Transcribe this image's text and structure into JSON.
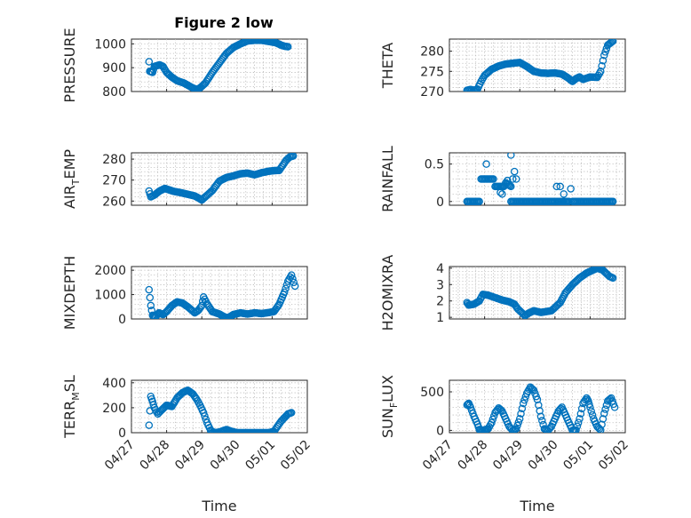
{
  "figure_title": "Figure 2 low",
  "chart_data": [
    {
      "id": "pressure",
      "type": "scatter",
      "ylabel": {
        "base": "PRESSURE",
        "sub": "",
        "rest": ""
      },
      "ylim": [
        800,
        1020
      ],
      "yticks": [
        800,
        900,
        1000
      ],
      "grid": true,
      "xlim": [
        0,
        5
      ],
      "xticklabels": [],
      "xlabel": "",
      "keypoints": [
        [
          0.5,
          925
        ],
        [
          0.52,
          885
        ],
        [
          0.6,
          880
        ],
        [
          0.65,
          905
        ],
        [
          0.8,
          912
        ],
        [
          0.9,
          905
        ],
        [
          1.0,
          880
        ],
        [
          1.15,
          860
        ],
        [
          1.3,
          845
        ],
        [
          1.5,
          835
        ],
        [
          1.7,
          818
        ],
        [
          1.85,
          808
        ],
        [
          1.95,
          815
        ],
        [
          2.1,
          835
        ],
        [
          2.3,
          880
        ],
        [
          2.5,
          920
        ],
        [
          2.7,
          960
        ],
        [
          2.9,
          985
        ],
        [
          3.1,
          1000
        ],
        [
          3.3,
          1012
        ],
        [
          3.5,
          1015
        ],
        [
          3.7,
          1015
        ],
        [
          3.9,
          1010
        ],
        [
          4.1,
          1005
        ],
        [
          4.25,
          995
        ],
        [
          4.35,
          990
        ],
        [
          4.45,
          988
        ]
      ]
    },
    {
      "id": "theta",
      "type": "scatter",
      "ylabel": {
        "base": "THETA",
        "sub": "",
        "rest": ""
      },
      "ylim": [
        270,
        283
      ],
      "yticks": [
        270,
        275,
        280
      ],
      "grid": true,
      "xlim": [
        0,
        5
      ],
      "xticklabels": [],
      "xlabel": "",
      "keypoints": [
        [
          0.5,
          270.3
        ],
        [
          0.6,
          270.5
        ],
        [
          0.7,
          270.3
        ],
        [
          0.8,
          270.6
        ],
        [
          0.9,
          272.5
        ],
        [
          1.0,
          274
        ],
        [
          1.2,
          275.5
        ],
        [
          1.4,
          276.3
        ],
        [
          1.6,
          276.8
        ],
        [
          1.8,
          277
        ],
        [
          2.0,
          277.2
        ],
        [
          2.2,
          276.2
        ],
        [
          2.4,
          275
        ],
        [
          2.6,
          274.6
        ],
        [
          2.8,
          274.5
        ],
        [
          3.0,
          274.6
        ],
        [
          3.2,
          274.3
        ],
        [
          3.35,
          273.5
        ],
        [
          3.5,
          272.5
        ],
        [
          3.6,
          273.2
        ],
        [
          3.7,
          273.6
        ],
        [
          3.8,
          273
        ],
        [
          4.0,
          273.6
        ],
        [
          4.2,
          273.5
        ],
        [
          4.3,
          275
        ],
        [
          4.4,
          279
        ],
        [
          4.5,
          281.5
        ],
        [
          4.65,
          282.5
        ]
      ]
    },
    {
      "id": "air_temp",
      "type": "scatter",
      "ylabel": {
        "base": "AIR",
        "sub": "T",
        "rest": "EMP"
      },
      "ylim": [
        258,
        283
      ],
      "yticks": [
        260,
        270,
        280
      ],
      "grid": true,
      "xlim": [
        0,
        5
      ],
      "xticklabels": [],
      "xlabel": "",
      "keypoints": [
        [
          0.5,
          264.8
        ],
        [
          0.55,
          262
        ],
        [
          0.65,
          262.8
        ],
        [
          0.8,
          264.8
        ],
        [
          0.95,
          266
        ],
        [
          1.2,
          264.6
        ],
        [
          1.4,
          264
        ],
        [
          1.6,
          263.2
        ],
        [
          1.8,
          262.4
        ],
        [
          1.9,
          261.5
        ],
        [
          2.0,
          260.5
        ],
        [
          2.1,
          262
        ],
        [
          2.3,
          265
        ],
        [
          2.5,
          269.5
        ],
        [
          2.7,
          271.2
        ],
        [
          2.9,
          272
        ],
        [
          3.1,
          273
        ],
        [
          3.3,
          273.3
        ],
        [
          3.5,
          272.5
        ],
        [
          3.7,
          273.5
        ],
        [
          3.9,
          274.2
        ],
        [
          4.05,
          274.5
        ],
        [
          4.2,
          274.6
        ],
        [
          4.3,
          277
        ],
        [
          4.4,
          279.5
        ],
        [
          4.5,
          281
        ],
        [
          4.6,
          281.5
        ]
      ]
    },
    {
      "id": "rainfall",
      "type": "scatter",
      "ylabel": {
        "base": "RAINFALL",
        "sub": "",
        "rest": ""
      },
      "ylim": [
        -0.05,
        0.65
      ],
      "yticks": [
        0,
        0.5
      ],
      "grid": true,
      "xlim": [
        0,
        5
      ],
      "xticklabels": [],
      "xlabel": "",
      "segments": [
        [
          [
            0.5,
            0
          ],
          [
            0.85,
            0
          ]
        ],
        [
          [
            0.9,
            0.3
          ],
          [
            1.25,
            0.3
          ]
        ],
        [
          [
            1.3,
            0.2
          ],
          [
            1.55,
            0.2
          ]
        ],
        [
          [
            1.6,
            0.25
          ],
          [
            1.75,
            0.2
          ]
        ],
        [
          [
            1.75,
            0
          ],
          [
            3.0,
            0
          ]
        ],
        [
          [
            3.05,
            0
          ],
          [
            3.4,
            0
          ]
        ],
        [
          [
            3.5,
            0
          ],
          [
            4.65,
            0
          ]
        ]
      ],
      "extra_points": [
        [
          1.05,
          0.5
        ],
        [
          1.45,
          0.12
        ],
        [
          1.5,
          0.1
        ],
        [
          1.75,
          0.62
        ],
        [
          1.8,
          0.3
        ],
        [
          1.85,
          0.4
        ],
        [
          1.9,
          0.3
        ],
        [
          1.65,
          0.28
        ],
        [
          3.05,
          0.2
        ],
        [
          3.15,
          0.2
        ],
        [
          3.25,
          0.1
        ],
        [
          3.45,
          0.17
        ]
      ]
    },
    {
      "id": "mixdepth",
      "type": "scatter",
      "ylabel": {
        "base": "MIXDEPTH",
        "sub": "",
        "rest": ""
      },
      "ylim": [
        0,
        2150
      ],
      "yticks": [
        0,
        1000,
        2000
      ],
      "grid": true,
      "xlim": [
        0,
        5
      ],
      "xticklabels": [],
      "xlabel": "",
      "keypoints": [
        [
          0.5,
          1200
        ],
        [
          0.55,
          550
        ],
        [
          0.6,
          150
        ],
        [
          0.68,
          80
        ],
        [
          0.78,
          250
        ],
        [
          0.9,
          180
        ],
        [
          1.0,
          300
        ],
        [
          1.15,
          550
        ],
        [
          1.3,
          700
        ],
        [
          1.45,
          650
        ],
        [
          1.6,
          500
        ],
        [
          1.7,
          380
        ],
        [
          1.8,
          250
        ],
        [
          1.9,
          350
        ],
        [
          2.0,
          550
        ],
        [
          2.05,
          900
        ],
        [
          2.15,
          620
        ],
        [
          2.3,
          300
        ],
        [
          2.5,
          200
        ],
        [
          2.65,
          80
        ],
        [
          2.75,
          50
        ],
        [
          2.9,
          180
        ],
        [
          3.1,
          250
        ],
        [
          3.3,
          200
        ],
        [
          3.5,
          250
        ],
        [
          3.7,
          220
        ],
        [
          3.9,
          260
        ],
        [
          4.05,
          300
        ],
        [
          4.2,
          600
        ],
        [
          4.35,
          1100
        ],
        [
          4.45,
          1550
        ],
        [
          4.55,
          1800
        ],
        [
          4.65,
          1350
        ]
      ]
    },
    {
      "id": "h2omixra",
      "type": "scatter",
      "ylabel": {
        "base": "H2OMIXRA",
        "sub": "",
        "rest": ""
      },
      "ylim": [
        0.9,
        4.1
      ],
      "yticks": [
        1,
        2,
        3,
        4
      ],
      "grid": true,
      "xlim": [
        0,
        5
      ],
      "xticklabels": [],
      "xlabel": "",
      "keypoints": [
        [
          0.5,
          1.9
        ],
        [
          0.55,
          1.75
        ],
        [
          0.7,
          1.8
        ],
        [
          0.85,
          2.0
        ],
        [
          0.95,
          2.4
        ],
        [
          1.1,
          2.35
        ],
        [
          1.3,
          2.2
        ],
        [
          1.5,
          2.05
        ],
        [
          1.7,
          1.95
        ],
        [
          1.85,
          1.8
        ],
        [
          1.95,
          1.5
        ],
        [
          2.05,
          1.3
        ],
        [
          2.15,
          1.1
        ],
        [
          2.25,
          1.25
        ],
        [
          2.4,
          1.4
        ],
        [
          2.6,
          1.3
        ],
        [
          2.75,
          1.35
        ],
        [
          2.9,
          1.4
        ],
        [
          3.0,
          1.6
        ],
        [
          3.15,
          1.9
        ],
        [
          3.3,
          2.5
        ],
        [
          3.5,
          3.0
        ],
        [
          3.7,
          3.4
        ],
        [
          3.9,
          3.7
        ],
        [
          4.05,
          3.85
        ],
        [
          4.2,
          4.0
        ],
        [
          4.35,
          3.9
        ],
        [
          4.45,
          3.7
        ],
        [
          4.55,
          3.5
        ],
        [
          4.65,
          3.4
        ]
      ]
    },
    {
      "id": "terr_msl",
      "type": "scatter",
      "ylabel": {
        "base": "TERR",
        "sub": "M",
        "rest": "SL"
      },
      "ylim": [
        0,
        420
      ],
      "yticks": [
        0,
        200,
        400
      ],
      "grid": true,
      "xlim": [
        0,
        5
      ],
      "xticklabels": [
        "04/27",
        "04/28",
        "04/29",
        "04/30",
        "05/01",
        "05/02"
      ],
      "xlabel": "Time",
      "keypoints": [
        [
          0.5,
          60
        ],
        [
          0.55,
          290
        ],
        [
          0.6,
          250
        ],
        [
          0.65,
          200
        ],
        [
          0.75,
          150
        ],
        [
          0.85,
          180
        ],
        [
          1.0,
          220
        ],
        [
          1.15,
          210
        ],
        [
          1.3,
          280
        ],
        [
          1.45,
          320
        ],
        [
          1.6,
          340
        ],
        [
          1.75,
          310
        ],
        [
          1.85,
          270
        ],
        [
          1.95,
          220
        ],
        [
          2.05,
          160
        ],
        [
          2.15,
          80
        ],
        [
          2.25,
          20
        ],
        [
          2.35,
          0
        ],
        [
          2.5,
          5
        ],
        [
          2.7,
          25
        ],
        [
          2.85,
          10
        ],
        [
          3.0,
          0
        ],
        [
          3.3,
          0
        ],
        [
          3.6,
          0
        ],
        [
          3.9,
          0
        ],
        [
          4.05,
          10
        ],
        [
          4.15,
          50
        ],
        [
          4.25,
          90
        ],
        [
          4.35,
          120
        ],
        [
          4.45,
          150
        ],
        [
          4.55,
          160
        ]
      ]
    },
    {
      "id": "sun_flux",
      "type": "scatter",
      "ylabel": {
        "base": "SUN",
        "sub": "F",
        "rest": "LUX"
      },
      "ylim": [
        -30,
        650
      ],
      "yticks": [
        0,
        500
      ],
      "grid": true,
      "xlim": [
        0,
        5
      ],
      "xticklabels": [
        "04/27",
        "04/28",
        "04/29",
        "04/30",
        "05/01",
        "05/02"
      ],
      "xlabel": "Time",
      "keypoints": [
        [
          0.5,
          330
        ],
        [
          0.55,
          350
        ],
        [
          0.6,
          300
        ],
        [
          0.7,
          180
        ],
        [
          0.8,
          80
        ],
        [
          0.85,
          10
        ],
        [
          0.95,
          0
        ],
        [
          1.1,
          20
        ],
        [
          1.2,
          100
        ],
        [
          1.3,
          230
        ],
        [
          1.4,
          290
        ],
        [
          1.5,
          250
        ],
        [
          1.6,
          150
        ],
        [
          1.7,
          50
        ],
        [
          1.8,
          0
        ],
        [
          1.9,
          20
        ],
        [
          2.0,
          150
        ],
        [
          2.1,
          350
        ],
        [
          2.2,
          480
        ],
        [
          2.3,
          560
        ],
        [
          2.4,
          520
        ],
        [
          2.5,
          400
        ],
        [
          2.6,
          180
        ],
        [
          2.7,
          20
        ],
        [
          2.8,
          0
        ],
        [
          2.9,
          50
        ],
        [
          3.0,
          150
        ],
        [
          3.1,
          250
        ],
        [
          3.2,
          300
        ],
        [
          3.3,
          200
        ],
        [
          3.4,
          100
        ],
        [
          3.5,
          0
        ],
        [
          3.6,
          5
        ],
        [
          3.7,
          150
        ],
        [
          3.8,
          350
        ],
        [
          3.9,
          420
        ],
        [
          3.95,
          380
        ],
        [
          4.0,
          300
        ],
        [
          4.1,
          150
        ],
        [
          4.2,
          50
        ],
        [
          4.3,
          5
        ],
        [
          4.4,
          220
        ],
        [
          4.5,
          380
        ],
        [
          4.6,
          420
        ],
        [
          4.7,
          300
        ]
      ]
    }
  ]
}
